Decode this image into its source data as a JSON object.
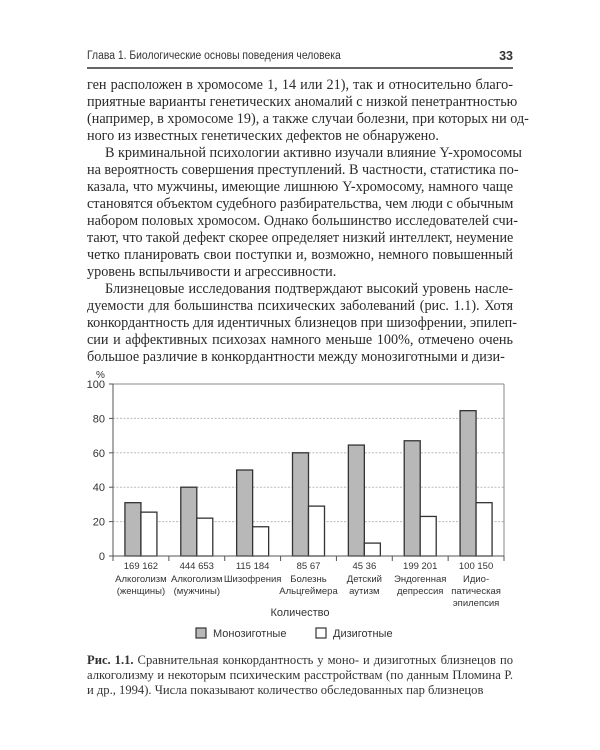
{
  "header": {
    "title": "Глава 1. Биологические основы поведения человека",
    "page_number": "33"
  },
  "body_lines": [
    "ген расположен в хромосоме 1, 14 или 21), так и относительно благо-",
    "приятные варианты генетических аномалий с низкой пенетрантностью",
    "(например, в хромосоме 19), а также случаи болезни, при которых ни од-",
    "ного из известных генетических дефектов не обнаружено.",
    "В криминальной психологии активно изучали влияние Y-хромосомы",
    "на вероятность совершения преступлений. В частности, статистика по-",
    "казала, что мужчины, имеющие лишнюю Y-хромосому, намного чаще",
    "становятся объектом судебного разбирательства, чем люди с обычным",
    "набором половых хромосом. Однако большинство исследователей счи-",
    "тают, что такой дефект скорее определяет низкий интеллект, неумение",
    "четко планировать свои поступки и, возможно, немного повышенный",
    "уровень вспыльчивости и агрессивности.",
    "Близнецовые исследования подтверждают высокий уровень насле-",
    "дуемости для большинства психических заболеваний (рис. 1.1). Хотя",
    "конкордантность для идентичных близнецов при шизофрении, эпилеп-",
    "сии и аффективных психозах намного меньше 100%, отмечено очень",
    "большое различие в конкордантности между монозиготными и дизи-"
  ],
  "chart_data": {
    "type": "bar",
    "ylabel": "%",
    "ylim": [
      0,
      100
    ],
    "yticks": [
      0,
      20,
      40,
      60,
      80,
      100
    ],
    "grid": true,
    "xlabel": "Количество",
    "categories": [
      [
        "Алкоголизм",
        "(женщины)"
      ],
      [
        "Алкоголизм",
        "(мужчины)"
      ],
      [
        "Шизофрения"
      ],
      [
        "Болезнь",
        "Альцгеймера"
      ],
      [
        "Детский",
        "аутизм"
      ],
      [
        "Эндогенная",
        "депрессия"
      ],
      [
        "Идио-",
        "патическая",
        "эпилепсия"
      ]
    ],
    "counts": [
      "169 162",
      "444 653",
      "115 184",
      "85   67",
      "45   36",
      "199 201",
      "100 150"
    ],
    "series": [
      {
        "name": "Монозиготные",
        "color": "#b8b8b8",
        "values": [
          31,
          40,
          50,
          60,
          64.5,
          67,
          84.5
        ]
      },
      {
        "name": "Дизиготные",
        "color": "#ffffff",
        "values": [
          25.5,
          22,
          17,
          29,
          7.5,
          23,
          31
        ]
      }
    ],
    "legend": "bottom"
  },
  "caption": {
    "label": "Рис. 1.1.",
    "lines": [
      "Сравнительная конкордантность у моно- и дизиготных близнецов по",
      "алкоголизму и некоторым психическим расстройствам (по данным Пломина Р.",
      "и др., 1994). Числа показывают количество обследованных пар близнецов"
    ]
  }
}
